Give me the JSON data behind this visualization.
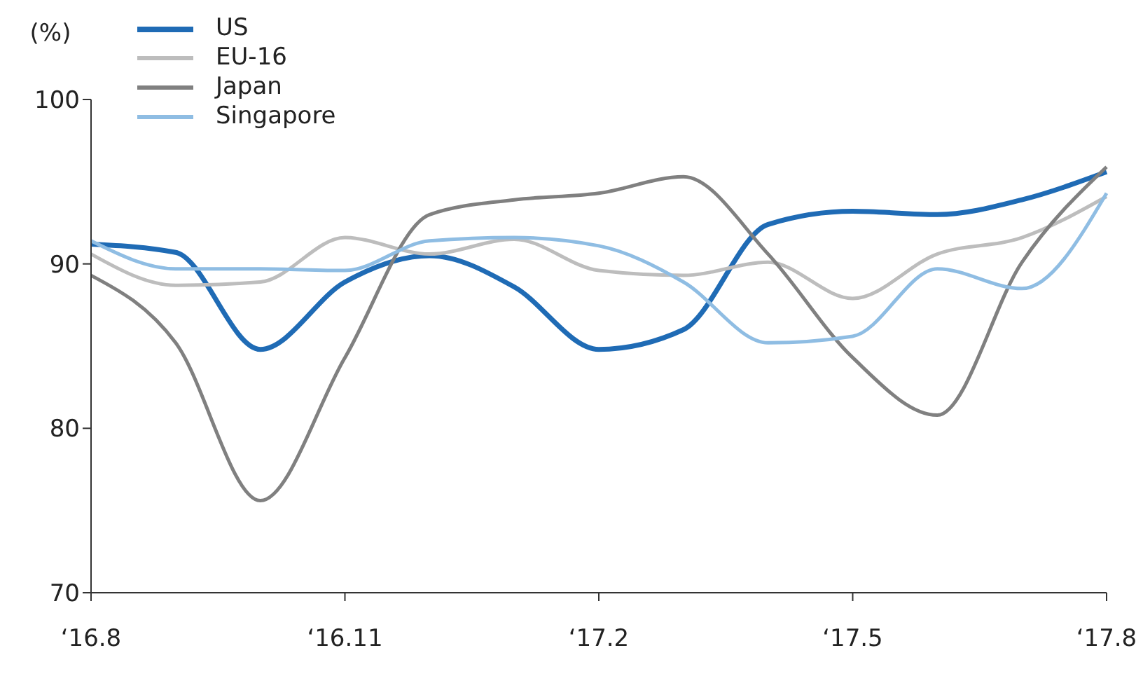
{
  "chart_data": {
    "type": "line",
    "ylabel": "(%)",
    "categories": [
      "‘16.8",
      null,
      null,
      "‘16.11",
      null,
      null,
      "‘17.2",
      null,
      null,
      "‘17.5",
      null,
      null,
      "‘17.8"
    ],
    "series": [
      {
        "name": "US",
        "color": "#1f6bb5",
        "values": [
          91.2,
          90.7,
          84.8,
          88.9,
          90.5,
          88.6,
          84.8,
          86.0,
          92.4,
          93.2,
          93.0,
          93.9,
          95.6
        ]
      },
      {
        "name": "EU-16",
        "color": "#bdbdbd",
        "values": [
          90.6,
          88.7,
          88.9,
          91.6,
          90.6,
          91.5,
          89.6,
          89.3,
          90.1,
          87.9,
          90.6,
          91.6,
          94.1
        ]
      },
      {
        "name": "Japan",
        "color": "#808080",
        "values": [
          89.3,
          85.2,
          75.6,
          84.3,
          93.0,
          93.9,
          94.3,
          95.3,
          90.6,
          84.3,
          80.8,
          90.1,
          95.9
        ]
      },
      {
        "name": "Singapore",
        "color": "#8fbde3",
        "values": [
          91.4,
          89.7,
          89.7,
          89.6,
          91.4,
          91.6,
          91.1,
          88.9,
          85.2,
          85.6,
          89.7,
          88.5,
          94.3
        ]
      }
    ],
    "ylim": [
      70,
      100
    ],
    "yticks": [
      70,
      80,
      90,
      100
    ],
    "grid": false,
    "legend": "top left",
    "marker": "none",
    "line_style": "solid"
  }
}
